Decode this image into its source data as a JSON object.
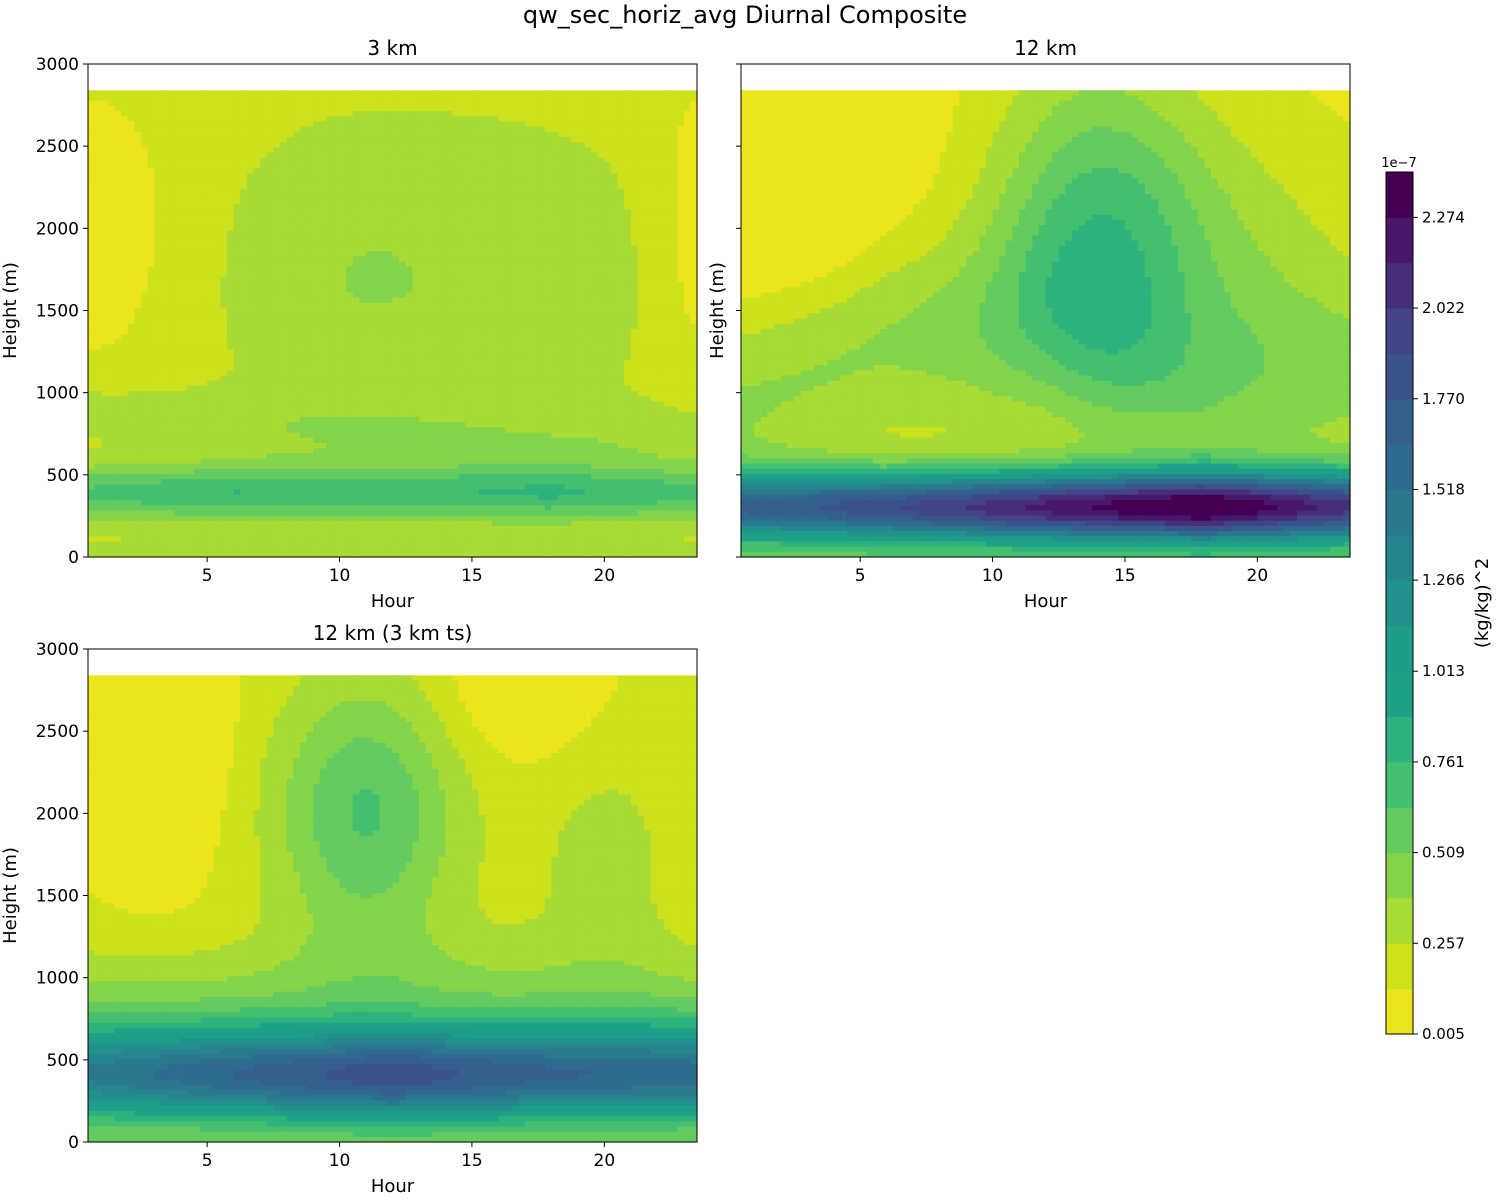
{
  "figure": {
    "title": "qw_sec_horiz_avg Diurnal Composite"
  },
  "colorbar": {
    "label": "(kg/kg)^2",
    "exponent": "1e−7",
    "ticks": [
      "0.005",
      "0.257",
      "0.509",
      "0.761",
      "1.013",
      "1.266",
      "1.518",
      "1.770",
      "2.022",
      "2.274"
    ],
    "levels_count": 19,
    "colormap": [
      "#ece51b",
      "#cde11d",
      "#a8db34",
      "#84d44b",
      "#63cb5f",
      "#44bf70",
      "#2db27d",
      "#1fa187",
      "#1e9d89",
      "#21918c",
      "#25848e",
      "#2a788e",
      "#2f6b8e",
      "#355f8d",
      "#3b528b",
      "#414487",
      "#472d7b",
      "#48186a",
      "#440154"
    ]
  },
  "chart_data": [
    {
      "type": "heatmap",
      "title": "3 km",
      "xlabel": "Hour",
      "ylabel": "Height (m)",
      "xlim": [
        0.5,
        23.5
      ],
      "ylim": [
        0,
        3000
      ],
      "data_top": 2840,
      "xticks": [
        5,
        10,
        15,
        20
      ],
      "yticks": [
        0,
        500,
        1000,
        1500,
        2000,
        2500,
        3000
      ],
      "field": {
        "bg": 0.2,
        "sigma_x": 30,
        "wx": 5,
        "ridge": {
          "h0": 390,
          "w": 170,
          "amp": 0.5,
          "amp_x": [
            0.45,
            0.55,
            0.5,
            0.55,
            0.45
          ]
        },
        "base": {
          "amp": 0.55,
          "h": 60
        },
        "mid_h": [
          900,
          800,
          750,
          700,
          750
        ],
        "mid_w": 200,
        "mid_amp": 0.13,
        "upper": [
          {
            "x": 10,
            "h": 1700,
            "sx": 5,
            "sh": 900,
            "amp": 0.15
          },
          {
            "x": 17,
            "h": 1700,
            "sx": 6,
            "sh": 1000,
            "amp": 0.12
          }
        ],
        "corners": [
          {
            "x": 0.5,
            "h": 2000,
            "sx": 3.5,
            "sh": 900,
            "amp": -0.15
          },
          {
            "x": 23.5,
            "h": 2000,
            "sx": 1.6,
            "sh": 1000,
            "amp": -0.15
          }
        ]
      }
    },
    {
      "type": "heatmap",
      "title": "12 km",
      "xlabel": "Hour",
      "ylabel": "Height (m)",
      "xlim": [
        0.5,
        23.5
      ],
      "ylim": [
        0,
        3000
      ],
      "data_top": 2840,
      "xticks": [
        5,
        10,
        15,
        20
      ],
      "yticks": [
        0,
        500,
        1000,
        1500,
        2000,
        2500,
        3000
      ],
      "field": {
        "bg": 0.1,
        "sigma_x": 30,
        "wx": 5,
        "ridge": {
          "h0": 300,
          "w": 220,
          "amp": 2.2,
          "amp_x": [
            1.45,
            1.75,
            2.05,
            2.3,
            1.85
          ]
        },
        "base": {
          "amp": 0.9,
          "h": 60
        },
        "mid_h": [
          900,
          1300,
          1400,
          1000,
          1100
        ],
        "mid_w": 600,
        "mid_amp": 0.3,
        "upper": [
          {
            "x": 14,
            "h": 2000,
            "sx": 4,
            "sh": 1000,
            "amp": 0.55
          },
          {
            "x": 19,
            "h": 1800,
            "sx": 5,
            "sh": 800,
            "amp": 0.2
          }
        ],
        "corners": [
          {
            "x": 2,
            "h": 2700,
            "sx": 4,
            "sh": 900,
            "amp": -0.35
          }
        ]
      }
    },
    {
      "type": "heatmap",
      "title": "12 km (3 km ts)",
      "xlabel": "Hour",
      "ylabel": "Height (m)",
      "xlim": [
        0.5,
        23.5
      ],
      "ylim": [
        0,
        3000
      ],
      "data_top": 2840,
      "xticks": [
        5,
        10,
        15,
        20
      ],
      "yticks": [
        0,
        500,
        1000,
        1500,
        2000,
        2500,
        3000
      ],
      "field": {
        "bg": 0.15,
        "sigma_x": 30,
        "wx": 5,
        "ridge": {
          "h0": 400,
          "w": 300,
          "amp": 1.5,
          "amp_x": [
            1.15,
            1.4,
            1.65,
            1.4,
            1.3
          ]
        },
        "base": {
          "amp": 0.6,
          "h": 60
        },
        "mid_h": [
          800,
          800,
          900,
          800,
          750
        ],
        "mid_w": 400,
        "mid_amp": 0.25,
        "upper": [
          {
            "x": 11,
            "h": 2000,
            "sx": 3.5,
            "sh": 800,
            "amp": 0.5
          },
          {
            "x": 20,
            "h": 1700,
            "sx": 3,
            "sh": 900,
            "amp": 0.15
          }
        ],
        "corners": [
          {
            "x": 3,
            "h": 2600,
            "sx": 2.5,
            "sh": 900,
            "amp": -0.3
          },
          {
            "x": 17,
            "h": 2800,
            "sx": 3,
            "sh": 500,
            "amp": -0.2
          }
        ]
      }
    }
  ]
}
